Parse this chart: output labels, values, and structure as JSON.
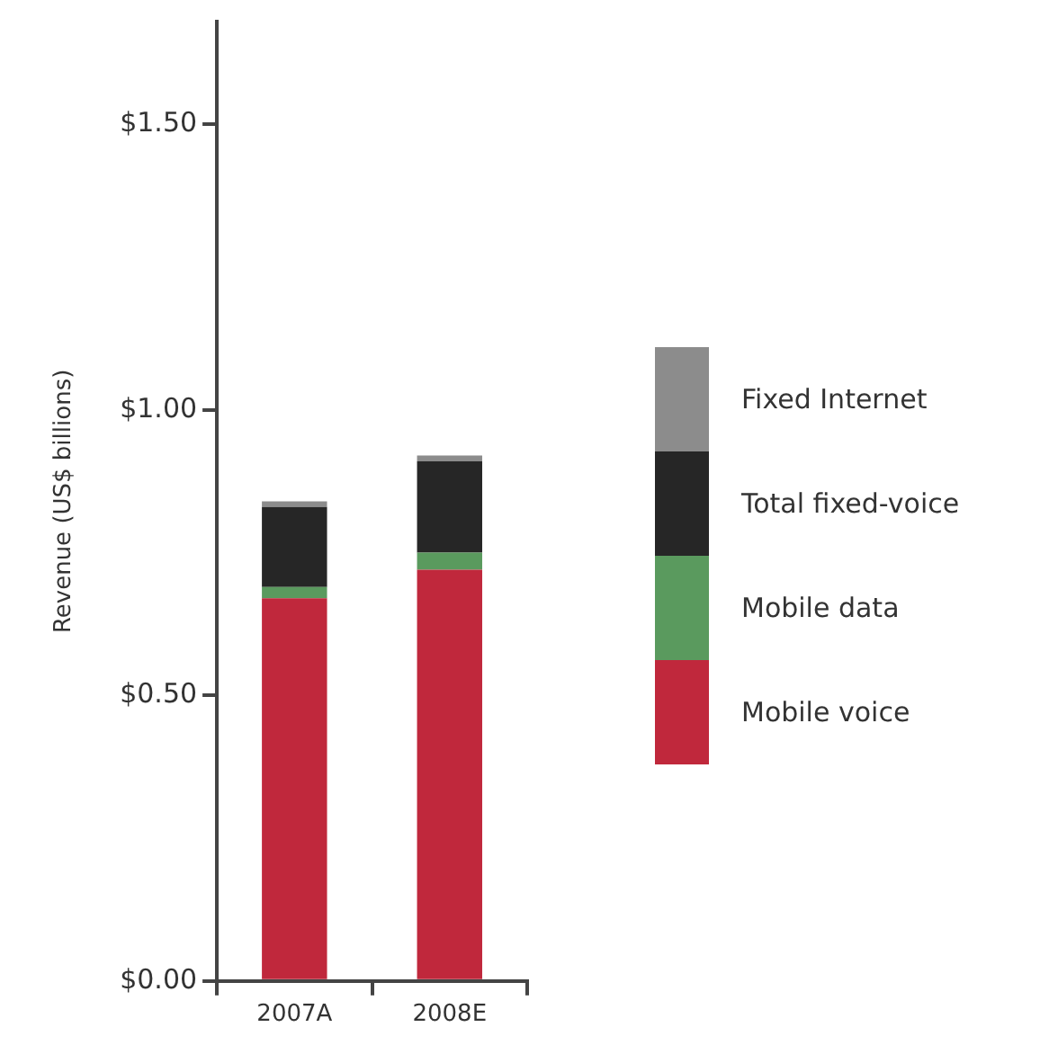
{
  "chart_data": {
    "type": "bar",
    "stacked": true,
    "ylabel": "Revenue (US$ billions)",
    "categories": [
      "2007A",
      "2008E"
    ],
    "series": [
      {
        "name": "Mobile voice",
        "color": "#c0283c",
        "values": [
          0.67,
          0.72
        ]
      },
      {
        "name": "Mobile data",
        "color": "#5a9a5e",
        "values": [
          0.02,
          0.03
        ]
      },
      {
        "name": "Total fixed-voice",
        "color": "#262626",
        "values": [
          0.14,
          0.16
        ]
      },
      {
        "name": "Fixed Internet",
        "color": "#8c8c8c",
        "values": [
          0.01,
          0.01
        ]
      }
    ],
    "ylim": [
      0,
      1.68
    ],
    "yticks": [
      {
        "value": 0,
        "label": "$0.00"
      },
      {
        "value": 0.5,
        "label": "$0.50"
      },
      {
        "value": 1,
        "label": "$1.00"
      },
      {
        "value": 1.5,
        "label": "$1.50"
      }
    ],
    "grid": false,
    "legend": "right"
  }
}
